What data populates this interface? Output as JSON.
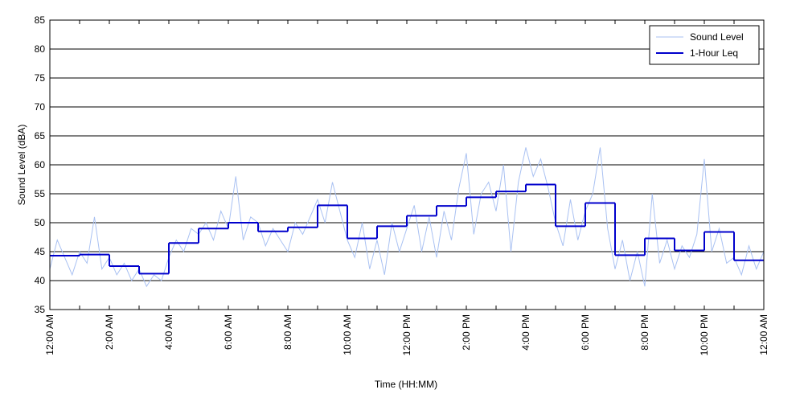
{
  "chart_data": {
    "type": "line",
    "x_label": "Time (HH:MM)",
    "y_label": "Sound Level (dBA)",
    "xlim": [
      0,
      24
    ],
    "xticks": [
      {
        "value": 0,
        "label": "12:00 AM"
      },
      {
        "value": 2,
        "label": "2:00 AM"
      },
      {
        "value": 4,
        "label": "4:00 AM"
      },
      {
        "value": 6,
        "label": "6:00 AM"
      },
      {
        "value": 8,
        "label": "8:00 AM"
      },
      {
        "value": 10,
        "label": "10:00 AM"
      },
      {
        "value": 12,
        "label": "12:00 PM"
      },
      {
        "value": 14,
        "label": "2:00 PM"
      },
      {
        "value": 16,
        "label": "4:00 PM"
      },
      {
        "value": 18,
        "label": "6:00 PM"
      },
      {
        "value": 20,
        "label": "8:00 PM"
      },
      {
        "value": 22,
        "label": "10:00 PM"
      },
      {
        "value": 24,
        "label": "12:00 AM"
      }
    ],
    "xminorticks": [
      1,
      3,
      5,
      7,
      9,
      11,
      13,
      15,
      17,
      19,
      21,
      23
    ],
    "ylim": [
      35,
      85
    ],
    "yticks": [
      35,
      40,
      45,
      50,
      55,
      60,
      65,
      70,
      75,
      80,
      85
    ],
    "grid": true,
    "legend": "upper right",
    "series": [
      {
        "name": "Sound Level",
        "color": "#a9c1f2",
        "step": false,
        "x": [
          0,
          0.25,
          0.5,
          0.75,
          1,
          1.25,
          1.5,
          1.75,
          2,
          2.25,
          2.5,
          2.75,
          3,
          3.25,
          3.5,
          3.75,
          4,
          4.25,
          4.5,
          4.75,
          5,
          5.25,
          5.5,
          5.75,
          6,
          6.25,
          6.5,
          6.75,
          7,
          7.25,
          7.5,
          7.75,
          8,
          8.25,
          8.5,
          8.75,
          9,
          9.25,
          9.5,
          9.75,
          10,
          10.25,
          10.5,
          10.75,
          11,
          11.25,
          11.5,
          11.75,
          12,
          12.25,
          12.5,
          12.75,
          13,
          13.25,
          13.5,
          13.75,
          14,
          14.25,
          14.5,
          14.75,
          15,
          15.25,
          15.5,
          15.75,
          16,
          16.25,
          16.5,
          16.75,
          17,
          17.25,
          17.5,
          17.75,
          18,
          18.25,
          18.5,
          18.75,
          19,
          19.25,
          19.5,
          19.75,
          20,
          20.25,
          20.5,
          20.75,
          21,
          21.25,
          21.5,
          21.75,
          22,
          22.25,
          22.5,
          22.75,
          23,
          23.25,
          23.5,
          23.75,
          24
        ],
        "values": [
          42,
          47,
          44,
          41,
          45,
          43,
          51,
          42,
          44,
          41,
          43,
          40,
          42,
          39,
          41,
          40,
          44,
          47,
          45,
          49,
          48,
          50,
          47,
          52,
          49,
          58,
          47,
          51,
          50,
          46,
          49,
          47,
          45,
          50,
          48,
          51,
          54,
          50,
          57,
          52,
          47,
          44,
          50,
          42,
          47,
          41,
          50,
          45,
          49,
          53,
          45,
          51,
          44,
          52,
          47,
          56,
          62,
          48,
          55,
          57,
          52,
          60,
          45,
          57,
          63,
          58,
          61,
          56,
          50,
          46,
          54,
          47,
          52,
          55,
          63,
          49,
          42,
          47,
          40,
          45,
          39,
          55,
          43,
          47,
          42,
          46,
          44,
          48,
          61,
          45,
          49,
          43,
          44,
          41,
          46,
          42,
          45
        ]
      },
      {
        "name": "1-Hour Leq",
        "color": "#0000cc",
        "step": true,
        "x": [
          0,
          1,
          2,
          3,
          4,
          5,
          6,
          7,
          8,
          9,
          10,
          11,
          12,
          13,
          14,
          15,
          16,
          17,
          18,
          19,
          20,
          21,
          22,
          23
        ],
        "values": [
          44.3,
          44.5,
          42.5,
          41.2,
          46.5,
          49,
          50,
          48.5,
          49.2,
          53,
          47.3,
          49.4,
          51.2,
          52.9,
          54.4,
          55.4,
          56.6,
          49.4,
          53.4,
          44.4,
          47.3,
          45.2,
          48.4,
          43.5
        ]
      }
    ]
  }
}
